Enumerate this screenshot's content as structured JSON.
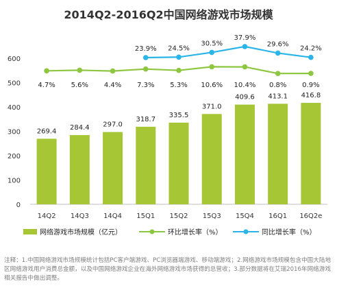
{
  "chart_data": {
    "type": "bar",
    "title": "2014Q2-2016Q2中国网络游戏市场规模",
    "categories": [
      "14Q2",
      "14Q3",
      "14Q4",
      "15Q1",
      "15Q2",
      "15Q3",
      "15Q4",
      "16Q1",
      "16Q2e"
    ],
    "ylim": [
      0,
      600
    ],
    "yticks": [
      0,
      100,
      200,
      300,
      400,
      500,
      600
    ],
    "grid": false,
    "legend_position": "bottom",
    "series": [
      {
        "name": "网络游戏市场规模（亿元）",
        "kind": "bar",
        "values": [
          269.4,
          284.4,
          297.0,
          318.7,
          335.5,
          371.0,
          409.6,
          413.1,
          416.8
        ],
        "labels": [
          "269.4",
          "284.4",
          "297.0",
          "318.7",
          "335.5",
          "371.0",
          "409.6",
          "413.1",
          "416.8"
        ],
        "color": "#a6c635"
      },
      {
        "name": "环比增长率（%）",
        "kind": "line",
        "values": [
          4.7,
          5.6,
          4.4,
          7.3,
          5.3,
          10.6,
          10.4,
          0.8,
          0.9
        ],
        "labels": [
          "4.7%",
          "5.6%",
          "4.4%",
          "7.3%",
          "5.3%",
          "10.6%",
          "10.4%",
          "0.8%",
          "0.9%"
        ],
        "color": "#8dc63f"
      },
      {
        "name": "同比增长率（%）",
        "kind": "line",
        "values": [
          null,
          null,
          null,
          23.9,
          24.5,
          30.5,
          37.9,
          29.6,
          24.2
        ],
        "labels": [
          "",
          "",
          "",
          "23.9%",
          "24.5%",
          "30.5%",
          "37.9%",
          "29.6%",
          "24.2%"
        ],
        "color": "#2ab4e8"
      }
    ]
  },
  "note": "注释：1.中国网络游戏市场规模统计包括PC客户端游戏、PC浏览器端游戏、移动端游戏；2.网络游戏市场规模包含中国大陆地区网络游戏用户消费总金额，以及中国网络游戏企业在海外网络游戏市场获得的总营收；3.部分数据将在艾瑞2016年网络游戏相关报告中做出调整。"
}
